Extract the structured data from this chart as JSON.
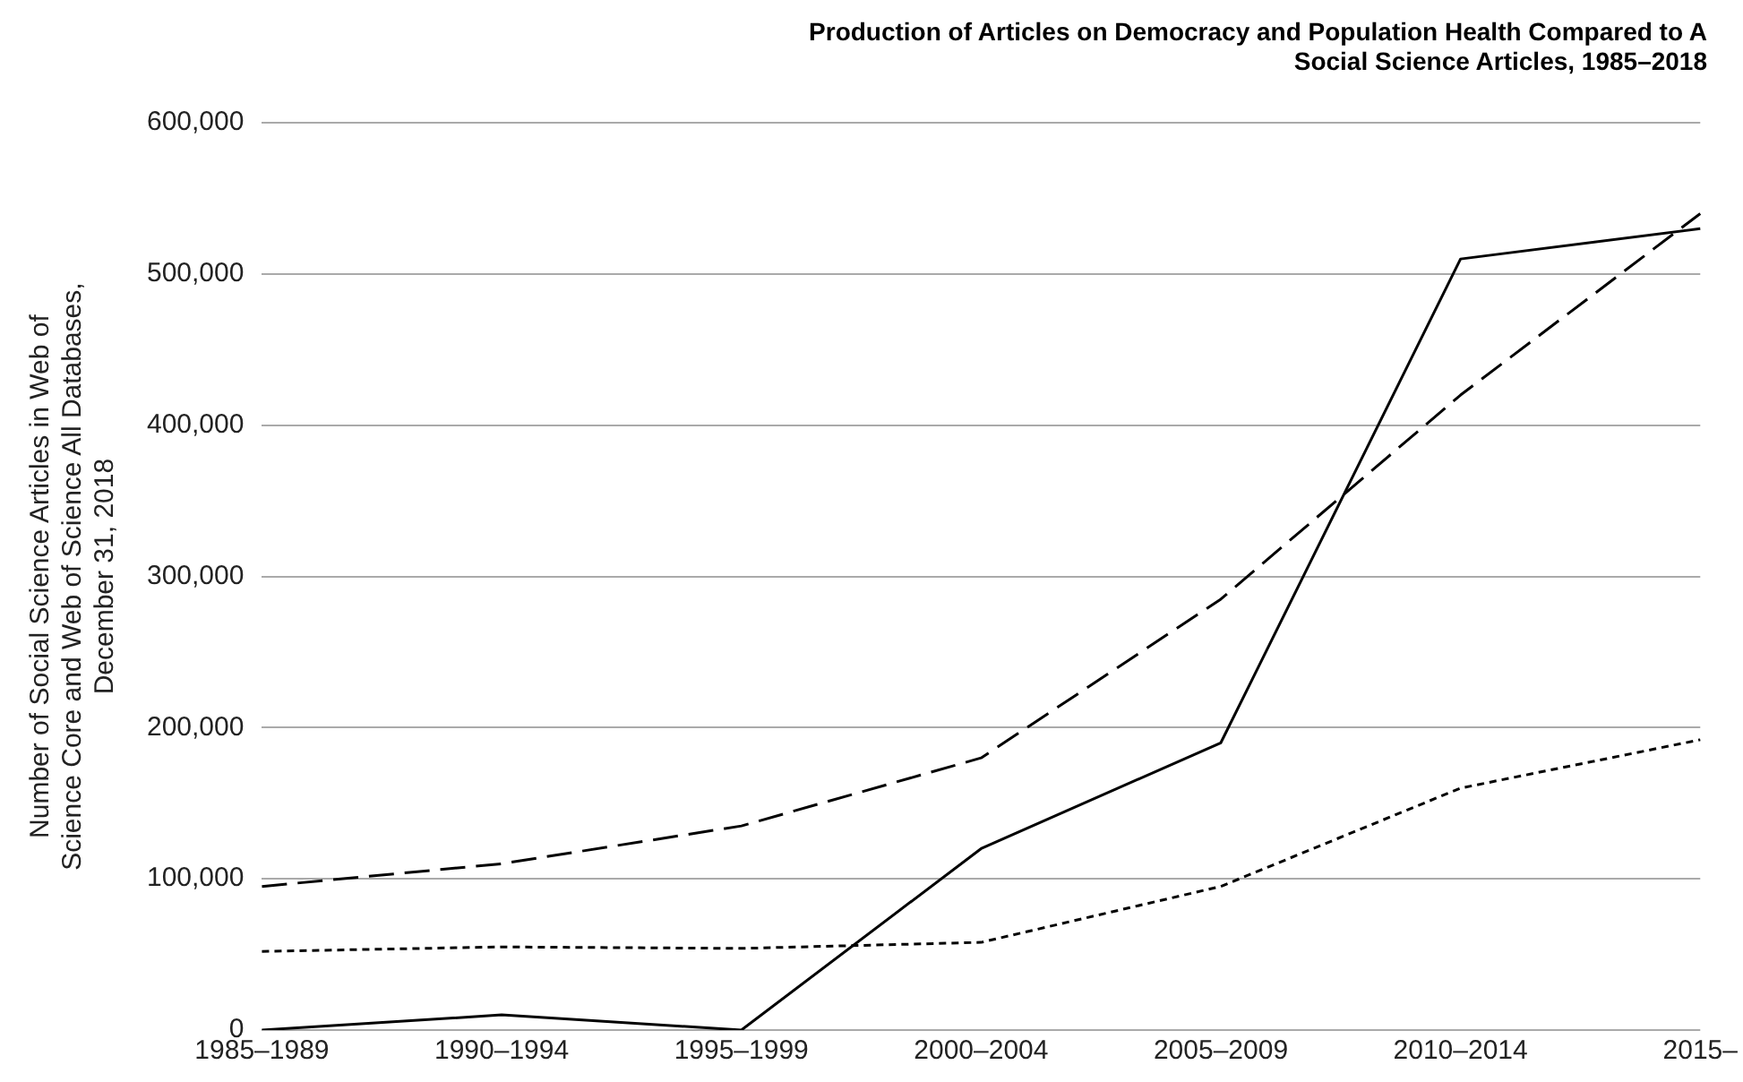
{
  "chart_data": {
    "type": "line",
    "title": "Production of Articles on Democracy and Population Health Compared to A\nSocial Science Articles, 1985–2018",
    "ylabel": "Number of Social Science Articles in Web of\nScience Core and Web of Science All Databases,\nDecember 31, 2018",
    "categories": [
      "1985–1989",
      "1990–1994",
      "1995–1999",
      "2000–2004",
      "2005–2009",
      "2010–2014",
      "2015–"
    ],
    "series": [
      {
        "color": "#000000",
        "line_style": "solid",
        "values": [
          0,
          10000,
          0,
          120000,
          190000,
          510000,
          530000
        ]
      },
      {
        "color": "#000000",
        "line_style": "dashed",
        "values": [
          95000,
          110000,
          135000,
          180000,
          285000,
          420000,
          540000
        ]
      },
      {
        "color": "#000000",
        "line_style": "dotted",
        "values": [
          52000,
          55000,
          54000,
          58000,
          95000,
          160000,
          192000
        ]
      }
    ],
    "ylim": [
      0,
      600000
    ],
    "yticks": [
      0,
      {
        "value": 100000,
        "label": "100,000"
      },
      {
        "value": 200000,
        "label": "200,000"
      },
      {
        "value": 300000,
        "label": "300,000"
      },
      {
        "value": 400000,
        "label": "400,000"
      },
      {
        "value": 500000,
        "label": "500,000"
      },
      {
        "value": 600000,
        "label": "600,000"
      }
    ],
    "grid": "y",
    "legend": false,
    "marker": "none"
  }
}
